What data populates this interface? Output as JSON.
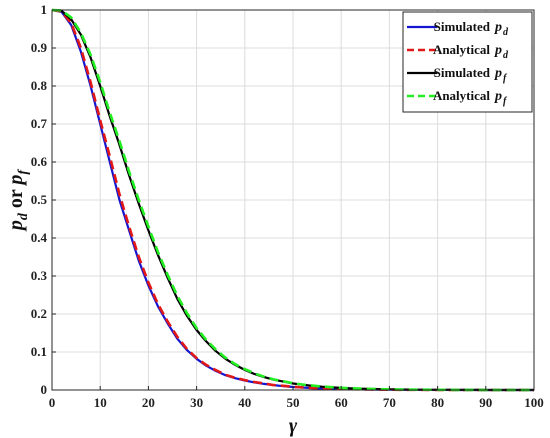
{
  "chart_data": {
    "type": "line",
    "title": "",
    "xlabel": "γ",
    "ylabel": {
      "p1": "p",
      "s1": "d",
      "mid": " or ",
      "p2": "p",
      "s2": "f"
    },
    "xlim": [
      0,
      100
    ],
    "ylim": [
      0,
      1
    ],
    "xticks": [
      "0",
      "10",
      "20",
      "30",
      "40",
      "50",
      "60",
      "70",
      "80",
      "90",
      "100"
    ],
    "yticks": [
      "0",
      "0.1",
      "0.2",
      "0.3",
      "0.4",
      "0.5",
      "0.6",
      "0.7",
      "0.8",
      "0.9",
      "1"
    ],
    "grid": true,
    "legend_position": "top-right",
    "x": [
      0,
      2,
      4,
      6,
      8,
      10,
      12,
      14,
      16,
      18,
      20,
      22,
      24,
      26,
      28,
      30,
      32,
      34,
      36,
      38,
      40,
      42,
      44,
      46,
      48,
      50,
      52,
      54,
      56,
      58,
      60,
      62,
      64,
      66,
      68,
      70,
      72,
      74,
      76,
      78,
      80,
      82,
      84,
      86,
      88,
      90,
      92,
      94,
      96,
      98,
      100
    ],
    "series": [
      {
        "name": "Simulated",
        "sym": "p",
        "sub": "d",
        "color": "#1515d0",
        "dash": "solid",
        "values": [
          1,
          0.995,
          0.96,
          0.89,
          0.8,
          0.7,
          0.6,
          0.5,
          0.42,
          0.34,
          0.275,
          0.22,
          0.175,
          0.135,
          0.105,
          0.082,
          0.064,
          0.05,
          0.039,
          0.031,
          0.025,
          0.02,
          0.016,
          0.013,
          0.01,
          0.008,
          0.0065,
          0.005,
          0.004,
          0.003,
          0.0025,
          0.002,
          0.0016,
          0.0012,
          0.001,
          0.0008,
          0.0006,
          0.0005,
          0.0004,
          0.0003,
          0.0002,
          0.0002,
          0.0001,
          0.0001,
          0.0001,
          0.0001,
          0,
          0,
          0,
          0,
          0
        ]
      },
      {
        "name": "Analytical",
        "sym": "p",
        "sub": "d",
        "color": "#e01818",
        "dash": "dashed",
        "values": [
          1,
          0.996,
          0.965,
          0.9,
          0.81,
          0.71,
          0.615,
          0.515,
          0.43,
          0.35,
          0.283,
          0.226,
          0.18,
          0.14,
          0.108,
          0.084,
          0.066,
          0.052,
          0.04,
          0.032,
          0.026,
          0.021,
          0.017,
          0.013,
          0.011,
          0.0085,
          0.0068,
          0.0053,
          0.0042,
          0.0033,
          0.0026,
          0.002,
          0.0016,
          0.0013,
          0.001,
          0.0008,
          0.0006,
          0.0005,
          0.0004,
          0.0003,
          0.0002,
          0.0002,
          0.0001,
          0.0001,
          0.0001,
          0.0001,
          0,
          0,
          0,
          0,
          0
        ]
      },
      {
        "name": "Simulated",
        "sym": "p",
        "sub": "f",
        "color": "#000000",
        "dash": "solid",
        "values": [
          1,
          0.998,
          0.975,
          0.935,
          0.875,
          0.8,
          0.72,
          0.645,
          0.565,
          0.49,
          0.42,
          0.355,
          0.295,
          0.24,
          0.195,
          0.158,
          0.128,
          0.102,
          0.082,
          0.066,
          0.053,
          0.042,
          0.034,
          0.027,
          0.022,
          0.017,
          0.014,
          0.011,
          0.0088,
          0.007,
          0.0056,
          0.0044,
          0.0035,
          0.0028,
          0.0022,
          0.0017,
          0.0014,
          0.0011,
          0.0008,
          0.0006,
          0.0005,
          0.0004,
          0.0003,
          0.0002,
          0.0002,
          0.0001,
          0.0001,
          0.0001,
          0,
          0,
          0
        ]
      },
      {
        "name": "Analytical",
        "sym": "p",
        "sub": "f",
        "color": "#22ee22",
        "dash": "dashed",
        "values": [
          1,
          0.999,
          0.98,
          0.94,
          0.882,
          0.81,
          0.73,
          0.655,
          0.575,
          0.5,
          0.43,
          0.363,
          0.303,
          0.248,
          0.202,
          0.163,
          0.132,
          0.106,
          0.085,
          0.068,
          0.055,
          0.044,
          0.035,
          0.028,
          0.023,
          0.018,
          0.0145,
          0.0115,
          0.0092,
          0.0073,
          0.0058,
          0.0046,
          0.0036,
          0.0029,
          0.0023,
          0.0018,
          0.0014,
          0.0011,
          0.0009,
          0.0007,
          0.0005,
          0.0004,
          0.0003,
          0.0002,
          0.0002,
          0.0001,
          0.0001,
          0.0001,
          0,
          0,
          0
        ]
      }
    ]
  }
}
